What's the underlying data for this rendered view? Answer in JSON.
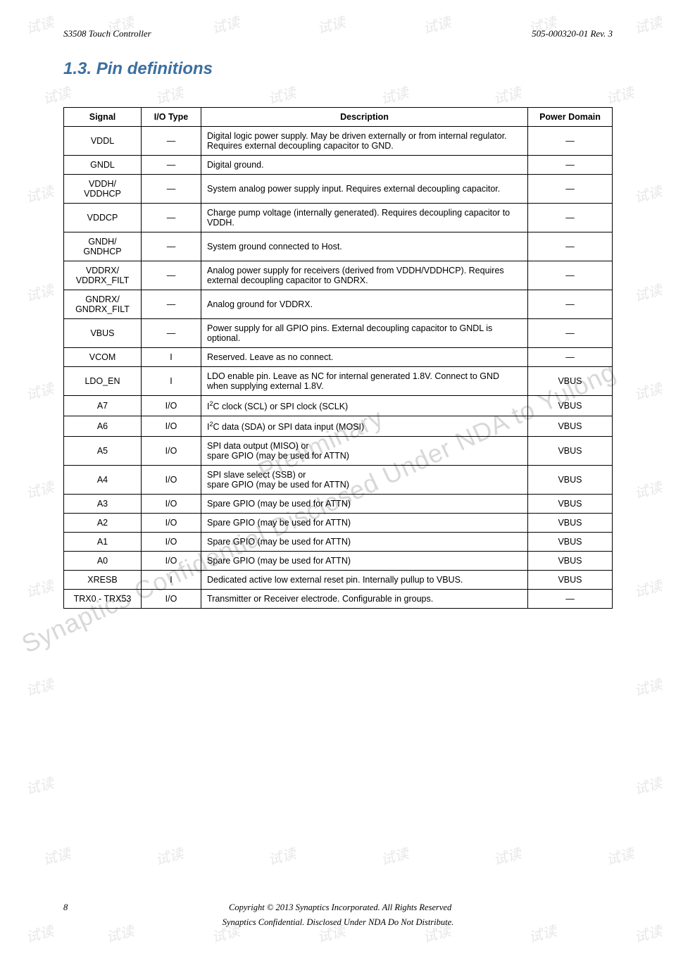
{
  "header": {
    "left": "S3508 Touch Controller",
    "right": "505-000320-01  Rev. 3"
  },
  "section_title": "1.3.  Pin definitions",
  "table": {
    "headers": [
      "Signal",
      "I/O Type",
      "Description",
      "Power Domain"
    ],
    "rows": [
      {
        "signal": "VDDL",
        "io": "—",
        "desc": "Digital logic power supply. May be driven externally or from internal regulator. Requires external decoupling capacitor to GND.",
        "pd": "—"
      },
      {
        "signal": "GNDL",
        "io": "—",
        "desc": "Digital ground.",
        "pd": "—"
      },
      {
        "signal": "VDDH/\nVDDHCP",
        "io": "—",
        "desc": "System analog power supply input. Requires external decoupling capacitor.",
        "pd": "—"
      },
      {
        "signal": "VDDCP",
        "io": "—",
        "desc": "Charge pump voltage (internally generated). Requires decoupling capacitor to VDDH.",
        "pd": "—"
      },
      {
        "signal": "GNDH/\nGNDHCP",
        "io": "—",
        "desc": "System ground connected to Host.",
        "pd": "—"
      },
      {
        "signal": "VDDRX/\nVDDRX_FILT",
        "io": "—",
        "desc": "Analog power supply for receivers (derived from VDDH/VDDHCP). Requires external decoupling capacitor to GNDRX.",
        "pd": "—"
      },
      {
        "signal": "GNDRX/\nGNDRX_FILT",
        "io": "—",
        "desc": "Analog ground for VDDRX.",
        "pd": "—"
      },
      {
        "signal": "VBUS",
        "io": "—",
        "desc": "Power supply for all GPIO pins. External decoupling capacitor to GNDL is optional.",
        "pd": "—"
      },
      {
        "signal": "VCOM",
        "io": "I",
        "desc": "Reserved. Leave as no connect.",
        "pd": "—"
      },
      {
        "signal": "LDO_EN",
        "io": "I",
        "desc": "LDO enable pin. Leave as NC for internal generated 1.8V. Connect to GND when supplying external 1.8V.",
        "pd": "VBUS"
      },
      {
        "signal": "A7",
        "io": "I/O",
        "desc_html": "I<sup>2</sup>C clock (SCL) or SPI clock (SCLK)",
        "pd": "VBUS"
      },
      {
        "signal": "A6",
        "io": "I/O",
        "desc_html": "I<sup>2</sup>C data (SDA) or SPI data input (MOSI)",
        "pd": "VBUS"
      },
      {
        "signal": "A5",
        "io": "I/O",
        "desc": "SPI data output (MISO) or\nspare GPIO (may be used for ATTN)",
        "pd": "VBUS"
      },
      {
        "signal": "A4",
        "io": "I/O",
        "desc": "SPI slave select (SSB) or\nspare GPIO (may be used for ATTN)",
        "pd": "VBUS"
      },
      {
        "signal": "A3",
        "io": "I/O",
        "desc": "Spare GPIO (may be used for ATTN)",
        "pd": "VBUS"
      },
      {
        "signal": "A2",
        "io": "I/O",
        "desc": "Spare GPIO (may be used for ATTN)",
        "pd": "VBUS"
      },
      {
        "signal": "A1",
        "io": "I/O",
        "desc": "Spare GPIO (may be used for ATTN)",
        "pd": "VBUS"
      },
      {
        "signal": "A0",
        "io": "I/O",
        "desc": "Spare GPIO (may be used for ATTN)",
        "pd": "VBUS"
      },
      {
        "signal": "XRESB",
        "io": "I",
        "desc": "Dedicated active low external reset pin. Internally pullup to VBUS.",
        "pd": "VBUS"
      },
      {
        "signal": "TRX0 - TRX53",
        "io": "I/O",
        "desc": "Transmitter or Receiver electrode. Configurable in groups.",
        "pd": "—"
      }
    ]
  },
  "footer": {
    "page": "8",
    "copy1": "Copyright © 2013 Synaptics Incorporated. All Rights Reserved",
    "copy2": "Synaptics Confidential. Disclosed Under NDA Do Not Distribute."
  },
  "watermark_text": "试读",
  "diag_watermark1": "Synaptics Confidential Disclosed Under NDA to Yulong",
  "diag_watermark2": "Preliminary"
}
